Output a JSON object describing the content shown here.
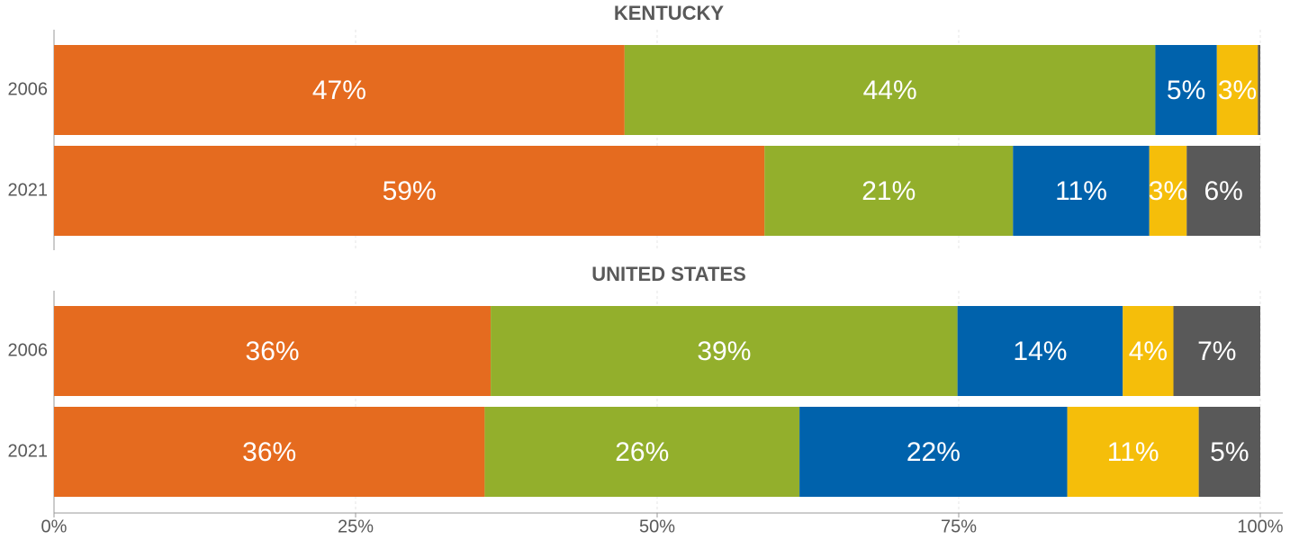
{
  "chart_data": [
    {
      "type": "stacked_barh",
      "title": "KENTUCKY",
      "categories": [
        "2006",
        "2021"
      ],
      "xlim": [
        0,
        100
      ],
      "series": [
        {
          "color": "#e56b1f",
          "values": [
            47.3,
            58.9
          ],
          "value_labels": [
            "47%",
            "59%"
          ]
        },
        {
          "color": "#93af2c",
          "values": [
            44.0,
            20.6
          ],
          "value_labels": [
            "44%",
            "21%"
          ]
        },
        {
          "color": "#0062ac",
          "values": [
            5.1,
            11.3
          ],
          "value_labels": [
            "5%",
            "11%"
          ]
        },
        {
          "color": "#f5be0a",
          "values": [
            3.4,
            3.1
          ],
          "value_labels": [
            "3%",
            "3%"
          ]
        },
        {
          "color": "#595959",
          "values": [
            0.2,
            6.1
          ],
          "value_labels": [
            null,
            "6%"
          ]
        }
      ]
    },
    {
      "type": "stacked_barh",
      "title": "UNITED STATES",
      "categories": [
        "2006",
        "2021"
      ],
      "xlim": [
        0,
        100
      ],
      "xticks": [
        {
          "value": 0,
          "label": "0%"
        },
        {
          "value": 25,
          "label": "25%"
        },
        {
          "value": 50,
          "label": "50%"
        },
        {
          "value": 75,
          "label": "75%"
        },
        {
          "value": 100,
          "label": "100%"
        }
      ],
      "grid": true,
      "series": [
        {
          "color": "#e56b1f",
          "values": [
            36.2,
            35.7
          ],
          "value_labels": [
            "36%",
            "36%"
          ]
        },
        {
          "color": "#93af2c",
          "values": [
            38.7,
            26.1
          ],
          "value_labels": [
            "39%",
            "26%"
          ]
        },
        {
          "color": "#0062ac",
          "values": [
            13.7,
            22.2
          ],
          "value_labels": [
            "14%",
            "22%"
          ]
        },
        {
          "color": "#f5be0a",
          "values": [
            4.2,
            10.9
          ],
          "value_labels": [
            "4%",
            "11%"
          ]
        },
        {
          "color": "#595959",
          "values": [
            7.2,
            5.1
          ],
          "value_labels": [
            "7%",
            "5%"
          ]
        }
      ]
    }
  ]
}
